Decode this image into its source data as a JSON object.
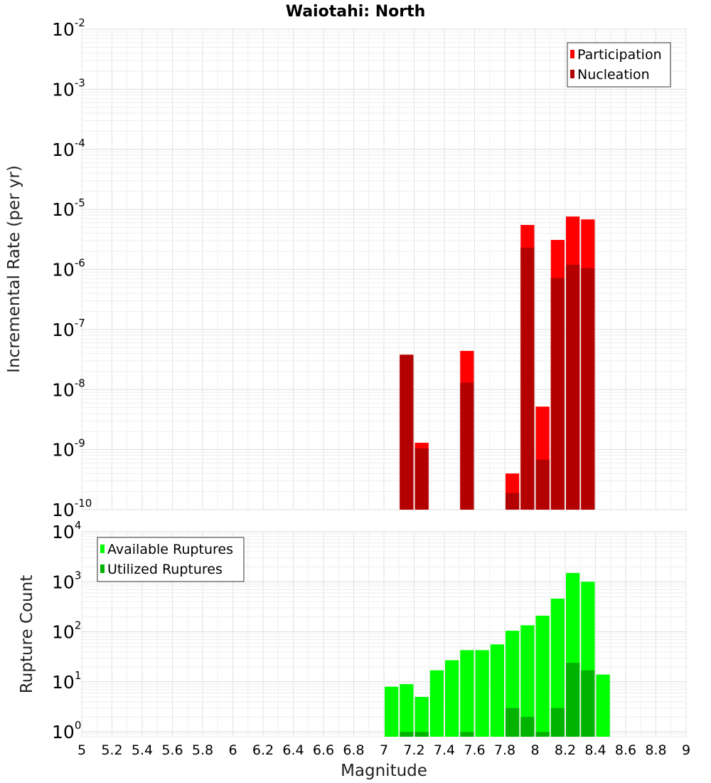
{
  "chart_data": [
    {
      "type": "bar",
      "title": "Waiotahi: North",
      "xlabel": "",
      "ylabel": "Incremental Rate (per yr)",
      "yscale": "log",
      "ylim": [
        1e-10,
        0.01
      ],
      "xlim": [
        5,
        9
      ],
      "ytick_exponents": [
        -2,
        -3,
        -4,
        -5,
        -6,
        -7,
        -8,
        -9,
        -10
      ],
      "grid": true,
      "legend_position": "top-right",
      "bin_width": 0.1,
      "series": [
        {
          "name": "Participation",
          "color": "#ff0000",
          "x": [
            7.15,
            7.25,
            7.55,
            7.85,
            7.95,
            8.05,
            8.15,
            8.25,
            8.35
          ],
          "values": [
            3.8e-08,
            1.3e-09,
            4.4e-08,
            4e-10,
            5.5e-06,
            5.2e-09,
            3.1e-06,
            7.6e-06,
            6.8e-06
          ]
        },
        {
          "name": "Nucleation",
          "color": "#b30000",
          "x": [
            7.15,
            7.25,
            7.55,
            7.85,
            7.95,
            8.05,
            8.15,
            8.25,
            8.35
          ],
          "values": [
            3.8e-08,
            1.05e-09,
            1.3e-08,
            1.9e-10,
            2.3e-06,
            6.8e-10,
            7.2e-07,
            1.2e-06,
            1.05e-06
          ]
        }
      ]
    },
    {
      "type": "bar",
      "title": "",
      "xlabel": "Magnitude",
      "ylabel": "Rupture Count",
      "yscale": "log",
      "ylim": [
        0.8,
        10000
      ],
      "xlim": [
        5,
        9
      ],
      "ytick_exponents": [
        4,
        3,
        2,
        1,
        0
      ],
      "x_tick_labels": [
        "5",
        "5.2",
        "5.4",
        "5.6",
        "5.8",
        "6",
        "6.2",
        "6.4",
        "6.6",
        "6.8",
        "7",
        "7.2",
        "7.4",
        "7.6",
        "7.8",
        "8",
        "8.2",
        "8.4",
        "8.6",
        "8.8",
        "9"
      ],
      "grid": true,
      "legend_position": "top-left",
      "bin_width": 0.1,
      "series": [
        {
          "name": "Available Ruptures",
          "color": "#00ff00",
          "x": [
            7.05,
            7.15,
            7.25,
            7.35,
            7.45,
            7.55,
            7.65,
            7.75,
            7.85,
            7.95,
            8.05,
            8.15,
            8.25,
            8.35,
            8.45
          ],
          "values": [
            8,
            9,
            5,
            17,
            27,
            43,
            43,
            56,
            105,
            135,
            210,
            460,
            1500,
            1000,
            14
          ]
        },
        {
          "name": "Utilized Ruptures",
          "color": "#00b300",
          "x": [
            7.15,
            7.25,
            7.55,
            7.85,
            7.95,
            8.05,
            8.15,
            8.25,
            8.35
          ],
          "values": [
            1,
            1,
            1,
            3,
            2,
            1,
            3,
            24,
            17
          ]
        }
      ]
    }
  ]
}
